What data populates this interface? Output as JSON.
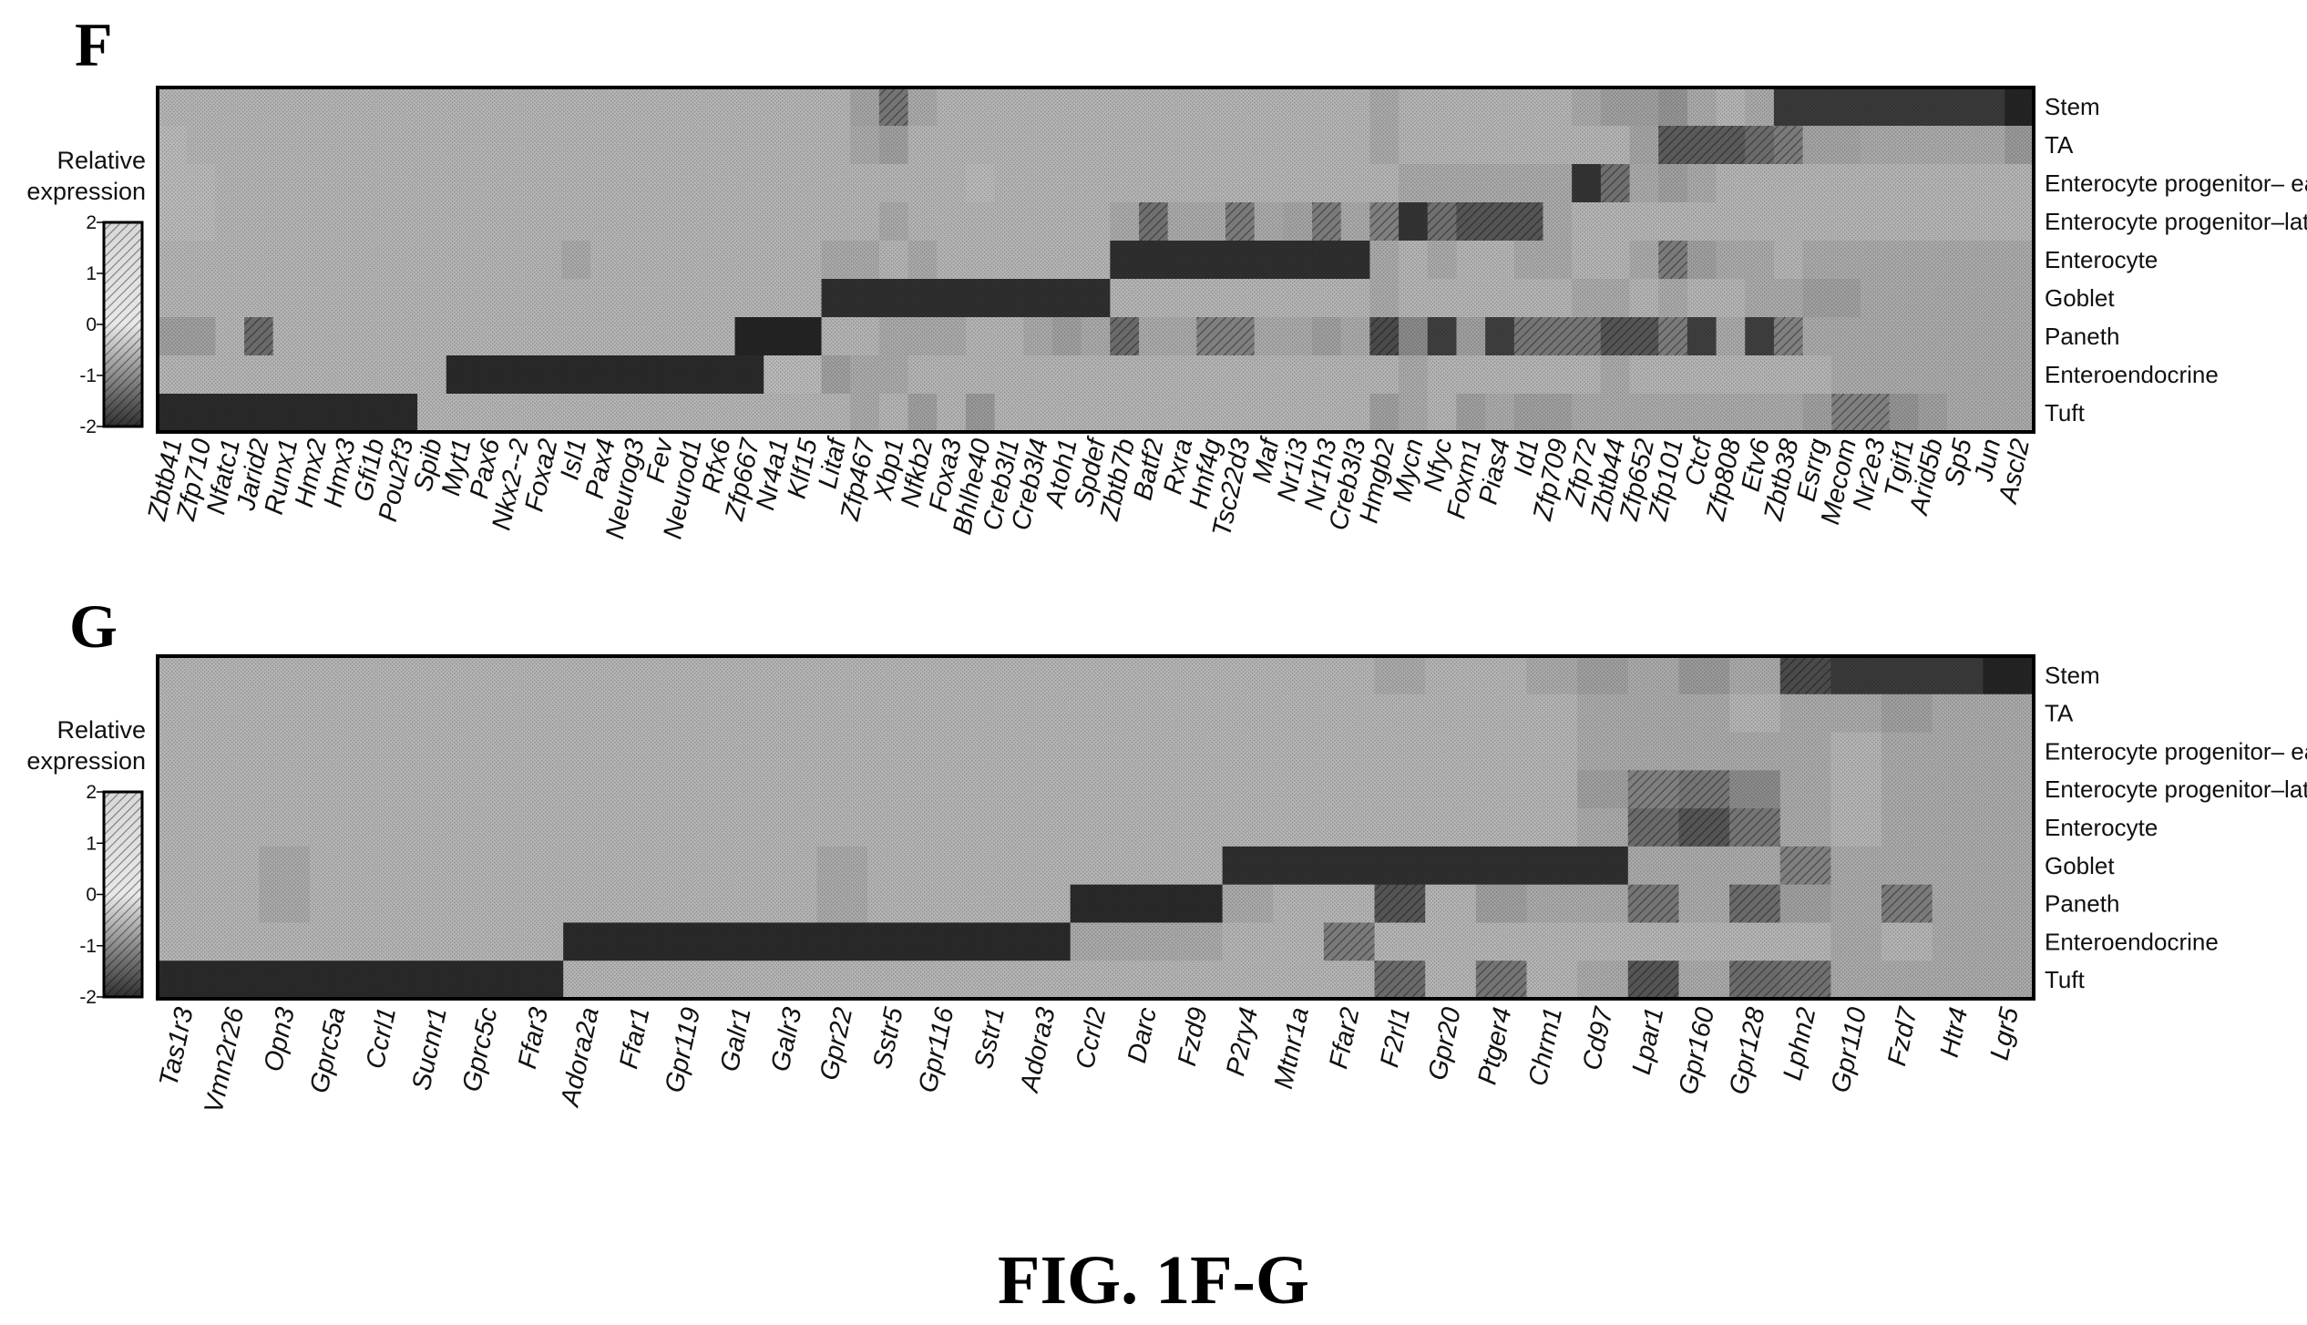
{
  "caption": "FIG. 1F-G",
  "colors": {
    "high": "#1f1f1f",
    "low": "#f4f4f4",
    "frame": "#000000"
  },
  "chart_data": [
    {
      "type": "heatmap",
      "panel": "F",
      "legend": {
        "title": [
          "Relative",
          "expression"
        ],
        "ticks": [
          "2",
          "1",
          "0",
          "-1",
          "-2"
        ],
        "range": [
          -2,
          2
        ]
      },
      "rows": [
        "Stem",
        "TA",
        "Enterocyte progenitor– early",
        "Enterocyte progenitor–late",
        "Enterocyte",
        "Goblet",
        "Paneth",
        "Enteroendocrine",
        "Tuft"
      ],
      "columns": [
        "Zbtb41",
        "Zfp710",
        "Nfatc1",
        "Jarid2",
        "Runx1",
        "Hmx2",
        "Hmx3",
        "Gfi1b",
        "Pou2f3",
        "Spib",
        "Myt1",
        "Pax6",
        "Nkx2--2",
        "Foxa2",
        "Isl1",
        "Pax4",
        "Neurog3",
        "Fev",
        "Neurod1",
        "Rfx6",
        "Zfp667",
        "Nr4a1",
        "Klf15",
        "Litaf",
        "Zfp467",
        "Xbp1",
        "Nfkb2",
        "Foxa3",
        "Bhlhe40",
        "Creb3l1",
        "Creb3l4",
        "Atoh1",
        "Spdef",
        "Zbtb7b",
        "Batf2",
        "Rxra",
        "Hnf4g",
        "Tsc22d3",
        "Maf",
        "Nr1i3",
        "Nr1h3",
        "Creb3l3",
        "Hmgb2",
        "Mycn",
        "Nfyc",
        "Foxm1",
        "Pias4",
        "Id1",
        "Zfp709",
        "Zfp72",
        "Zbtb44",
        "Zfp652",
        "Zfp101",
        "Ctcf",
        "Zfp808",
        "Etv6",
        "Zbtb38",
        "Esrrg",
        "Mecom",
        "Nr2e3",
        "Tgif1",
        "Arid5b",
        "Sp5",
        "Jun",
        "Ascl2"
      ],
      "values": [
        [
          -0.8,
          -0.8,
          -0.8,
          -0.8,
          -0.8,
          -0.8,
          -0.8,
          -0.8,
          -0.8,
          -0.8,
          -0.8,
          -0.8,
          -0.8,
          -0.8,
          -0.8,
          -0.8,
          -0.8,
          -0.8,
          -0.8,
          -0.8,
          -0.8,
          -0.8,
          -0.8,
          -0.8,
          -0.5,
          0.4,
          -0.6,
          -0.8,
          -0.8,
          -0.8,
          -0.8,
          -0.8,
          -0.8,
          -0.8,
          -0.8,
          -0.8,
          -0.8,
          -0.8,
          -0.8,
          -0.8,
          -0.8,
          -0.8,
          -0.6,
          -0.8,
          -0.8,
          -0.8,
          -0.8,
          -0.8,
          -0.8,
          -0.6,
          -0.4,
          -0.4,
          -0.2,
          -0.6,
          -0.8,
          -0.6,
          1.5,
          1.5,
          1.5,
          1.5,
          1.5,
          1.5,
          1.5,
          1.5,
          1.9
        ],
        [
          -0.9,
          -0.8,
          -0.8,
          -0.8,
          -0.8,
          -0.8,
          -0.8,
          -0.8,
          -0.8,
          -0.8,
          -0.8,
          -0.8,
          -0.8,
          -0.8,
          -0.8,
          -0.8,
          -0.8,
          -0.8,
          -0.8,
          -0.8,
          -0.8,
          -0.8,
          -0.8,
          -0.8,
          -0.6,
          -0.4,
          -0.8,
          -0.8,
          -0.8,
          -0.8,
          -0.8,
          -0.8,
          -0.8,
          -0.8,
          -0.8,
          -0.8,
          -0.8,
          -0.8,
          -0.8,
          -0.8,
          -0.8,
          -0.8,
          -0.6,
          -0.8,
          -0.8,
          -0.8,
          -0.8,
          -0.8,
          -0.8,
          -0.8,
          -0.8,
          -0.5,
          0.9,
          0.9,
          0.9,
          0.6,
          0.3,
          -0.5,
          -0.5,
          -0.6,
          -0.6,
          -0.6,
          -0.6,
          -0.6,
          -0.3
        ],
        [
          -0.9,
          -0.9,
          -0.8,
          -0.8,
          -0.8,
          -0.8,
          -0.8,
          -0.8,
          -0.8,
          -0.8,
          -0.8,
          -0.8,
          -0.8,
          -0.8,
          -0.8,
          -0.8,
          -0.8,
          -0.8,
          -0.8,
          -0.8,
          -0.8,
          -0.8,
          -0.8,
          -0.8,
          -0.8,
          -0.8,
          -0.8,
          -0.8,
          -0.9,
          -0.8,
          -0.8,
          -0.8,
          -0.8,
          -0.8,
          -0.8,
          -0.8,
          -0.8,
          -0.8,
          -0.8,
          -0.8,
          -0.8,
          -0.8,
          -0.8,
          -0.6,
          -0.6,
          -0.6,
          -0.6,
          -0.6,
          -0.6,
          1.6,
          0.5,
          -0.6,
          -0.4,
          -0.6,
          -0.8,
          -0.8,
          -0.8,
          -0.8,
          -0.8,
          -0.8,
          -0.8,
          -0.8,
          -0.8,
          -0.8,
          -0.8
        ],
        [
          -0.9,
          -0.9,
          -0.8,
          -0.8,
          -0.8,
          -0.8,
          -0.8,
          -0.8,
          -0.8,
          -0.8,
          -0.8,
          -0.8,
          -0.8,
          -0.8,
          -0.8,
          -0.8,
          -0.8,
          -0.8,
          -0.8,
          -0.8,
          -0.8,
          -0.8,
          -0.8,
          -0.8,
          -0.8,
          -0.6,
          -0.8,
          -0.8,
          -0.8,
          -0.8,
          -0.8,
          -0.8,
          -0.8,
          -0.6,
          0.5,
          -0.6,
          -0.6,
          0.3,
          -0.6,
          -0.5,
          0.3,
          -0.6,
          0.2,
          1.6,
          0.5,
          1.0,
          1.0,
          1.0,
          -0.6,
          -0.8,
          -0.8,
          -0.8,
          -0.8,
          -0.8,
          -0.8,
          -0.8,
          -0.8,
          -0.8,
          -0.8,
          -0.8,
          -0.8,
          -0.8,
          -0.8,
          -0.8,
          -0.8
        ],
        [
          -0.8,
          -0.8,
          -0.8,
          -0.8,
          -0.8,
          -0.8,
          -0.8,
          -0.8,
          -0.8,
          -0.8,
          -0.8,
          -0.8,
          -0.8,
          -0.8,
          -0.6,
          -0.8,
          -0.8,
          -0.8,
          -0.8,
          -0.8,
          -0.8,
          -0.8,
          -0.8,
          -0.6,
          -0.6,
          -0.8,
          -0.6,
          -0.8,
          -0.8,
          -0.8,
          -0.8,
          -0.8,
          -0.8,
          1.7,
          1.7,
          1.7,
          1.7,
          1.7,
          1.7,
          1.7,
          1.7,
          1.7,
          -0.6,
          -0.8,
          -0.6,
          -0.8,
          -0.8,
          -0.6,
          -0.6,
          -0.8,
          -0.8,
          -0.6,
          0.3,
          -0.4,
          -0.6,
          -0.6,
          -0.8,
          -0.6,
          -0.6,
          -0.6,
          -0.6,
          -0.6,
          -0.6,
          -0.6,
          -0.6
        ],
        [
          -0.8,
          -0.8,
          -0.8,
          -0.8,
          -0.8,
          -0.8,
          -0.8,
          -0.8,
          -0.8,
          -0.8,
          -0.8,
          -0.8,
          -0.8,
          -0.8,
          -0.8,
          -0.8,
          -0.8,
          -0.8,
          -0.8,
          -0.8,
          -0.8,
          -0.8,
          -0.8,
          1.7,
          1.7,
          1.7,
          1.7,
          1.7,
          1.7,
          1.7,
          1.7,
          1.7,
          1.7,
          -0.8,
          -0.8,
          -0.8,
          -0.8,
          -0.8,
          -0.8,
          -0.8,
          -0.8,
          -0.8,
          -0.6,
          -0.8,
          -0.8,
          -0.8,
          -0.8,
          -0.8,
          -0.8,
          -0.6,
          -0.6,
          -0.8,
          -0.6,
          -0.8,
          -0.8,
          -0.6,
          -0.6,
          -0.4,
          -0.4,
          -0.6,
          -0.6,
          -0.6,
          -0.6,
          -0.6,
          -0.6
        ],
        [
          -0.4,
          -0.4,
          -0.8,
          0.6,
          -0.8,
          -0.8,
          -0.8,
          -0.8,
          -0.8,
          -0.8,
          -0.8,
          -0.8,
          -0.8,
          -0.8,
          -0.8,
          -0.8,
          -0.8,
          -0.8,
          -0.8,
          -0.8,
          1.9,
          1.9,
          1.9,
          -0.8,
          -0.8,
          -0.6,
          -0.6,
          -0.6,
          -0.8,
          -0.8,
          -0.6,
          -0.4,
          -0.6,
          0.6,
          -0.6,
          -0.6,
          0.2,
          0.2,
          -0.6,
          -0.6,
          -0.4,
          -0.6,
          1.2,
          0.0,
          1.4,
          -0.4,
          1.4,
          0.4,
          0.4,
          0.4,
          1.0,
          1.0,
          0.3,
          1.4,
          -0.6,
          1.4,
          0.2,
          -0.6,
          -0.6,
          -0.6,
          -0.6,
          -0.6,
          -0.6,
          -0.6,
          -0.6
        ],
        [
          -0.8,
          -0.8,
          -0.8,
          -0.8,
          -0.8,
          -0.8,
          -0.8,
          -0.8,
          -0.8,
          -0.8,
          1.8,
          1.8,
          1.8,
          1.8,
          1.8,
          1.8,
          1.8,
          1.8,
          1.8,
          1.8,
          1.8,
          -0.9,
          -0.9,
          -0.4,
          -0.6,
          -0.6,
          -0.8,
          -0.8,
          -0.8,
          -0.8,
          -0.8,
          -0.8,
          -0.8,
          -0.8,
          -0.8,
          -0.8,
          -0.8,
          -0.8,
          -0.8,
          -0.8,
          -0.8,
          -0.8,
          -0.8,
          -0.6,
          -0.8,
          -0.8,
          -0.8,
          -0.8,
          -0.8,
          -0.8,
          -0.6,
          -0.8,
          -0.8,
          -0.8,
          -0.8,
          -0.8,
          -0.8,
          -0.8,
          -0.6,
          -0.6,
          -0.6,
          -0.6,
          -0.6,
          -0.6,
          -0.6
        ],
        [
          1.8,
          1.8,
          1.8,
          1.8,
          1.8,
          1.8,
          1.8,
          1.8,
          1.8,
          -0.8,
          -0.8,
          -0.8,
          -0.8,
          -0.8,
          -0.8,
          -0.8,
          -0.8,
          -0.8,
          -0.8,
          -0.8,
          -0.8,
          -0.8,
          -0.8,
          -0.8,
          -0.6,
          -0.8,
          -0.4,
          -0.8,
          -0.3,
          -0.8,
          -0.8,
          -0.8,
          -0.8,
          -0.8,
          -0.8,
          -0.8,
          -0.8,
          -0.8,
          -0.8,
          -0.8,
          -0.8,
          -0.8,
          -0.4,
          -0.6,
          -0.8,
          -0.4,
          -0.6,
          -0.4,
          -0.4,
          -0.6,
          -0.6,
          -0.6,
          -0.6,
          -0.6,
          -0.6,
          -0.6,
          -0.6,
          -0.4,
          0.2,
          0.2,
          -0.2,
          -0.4,
          -0.6,
          -0.6,
          -0.6
        ]
      ]
    },
    {
      "type": "heatmap",
      "panel": "G",
      "legend": {
        "title": [
          "Relative",
          "expression"
        ],
        "ticks": [
          "2",
          "1",
          "0",
          "-1",
          "-2"
        ],
        "range": [
          -2,
          2
        ]
      },
      "rows": [
        "Stem",
        "TA",
        "Enterocyte progenitor– early",
        "Enterocyte progenitor–late",
        "Enterocyte",
        "Goblet",
        "Paneth",
        "Enteroendocrine",
        "Tuft"
      ],
      "columns": [
        "Tas1r3",
        "Vmn2r26",
        "Opn3",
        "Gprc5a",
        "Ccrl1",
        "Sucnr1",
        "Gprc5c",
        "Ffar3",
        "Adora2a",
        "Ffar1",
        "Gpr119",
        "Galr1",
        "Galr3",
        "Gpr22",
        "Sstr5",
        "Gpr116",
        "Sstr1",
        "Adora3",
        "Ccrl2",
        "Darc",
        "Fzd9",
        "P2ry4",
        "Mtnr1a",
        "Ffar2",
        "F2rl1",
        "Gpr20",
        "Ptger4",
        "Chrm1",
        "Cd97",
        "Lpar1",
        "Gpr160",
        "Gpr128",
        "Lphn2",
        "Gpr110",
        "Fzd7",
        "Htr4",
        "Lgr5"
      ],
      "values": [
        [
          -0.8,
          -0.8,
          -0.8,
          -0.8,
          -0.8,
          -0.8,
          -0.8,
          -0.8,
          -0.8,
          -0.8,
          -0.8,
          -0.8,
          -0.8,
          -0.8,
          -0.8,
          -0.8,
          -0.8,
          -0.8,
          -0.8,
          -0.8,
          -0.8,
          -0.8,
          -0.8,
          -0.8,
          -0.6,
          -0.8,
          -0.8,
          -0.6,
          -0.4,
          -0.6,
          -0.3,
          -0.6,
          1.2,
          1.5,
          1.5,
          1.5,
          1.9
        ],
        [
          -0.8,
          -0.8,
          -0.8,
          -0.8,
          -0.8,
          -0.8,
          -0.8,
          -0.8,
          -0.8,
          -0.8,
          -0.8,
          -0.8,
          -0.8,
          -0.8,
          -0.8,
          -0.8,
          -0.8,
          -0.8,
          -0.8,
          -0.8,
          -0.8,
          -0.8,
          -0.8,
          -0.8,
          -0.8,
          -0.8,
          -0.8,
          -0.8,
          -0.6,
          -0.6,
          -0.6,
          -0.8,
          -0.6,
          -0.6,
          -0.4,
          -0.6,
          -0.6
        ],
        [
          -0.8,
          -0.8,
          -0.8,
          -0.8,
          -0.8,
          -0.8,
          -0.8,
          -0.8,
          -0.8,
          -0.8,
          -0.8,
          -0.8,
          -0.8,
          -0.8,
          -0.8,
          -0.8,
          -0.8,
          -0.8,
          -0.8,
          -0.8,
          -0.8,
          -0.8,
          -0.8,
          -0.8,
          -0.8,
          -0.8,
          -0.8,
          -0.8,
          -0.6,
          -0.6,
          -0.6,
          -0.6,
          -0.6,
          -0.8,
          -0.6,
          -0.6,
          -0.6
        ],
        [
          -0.8,
          -0.8,
          -0.8,
          -0.8,
          -0.8,
          -0.8,
          -0.8,
          -0.8,
          -0.8,
          -0.8,
          -0.8,
          -0.8,
          -0.8,
          -0.8,
          -0.8,
          -0.8,
          -0.8,
          -0.8,
          -0.8,
          -0.8,
          -0.8,
          -0.8,
          -0.8,
          -0.8,
          -0.8,
          -0.8,
          -0.8,
          -0.8,
          -0.4,
          0.2,
          0.4,
          0.0,
          -0.6,
          -0.8,
          -0.6,
          -0.6,
          -0.6
        ],
        [
          -0.8,
          -0.8,
          -0.8,
          -0.8,
          -0.8,
          -0.8,
          -0.8,
          -0.8,
          -0.8,
          -0.8,
          -0.8,
          -0.8,
          -0.8,
          -0.8,
          -0.8,
          -0.8,
          -0.8,
          -0.8,
          -0.8,
          -0.8,
          -0.8,
          -0.8,
          -0.8,
          -0.8,
          -0.8,
          -0.8,
          -0.8,
          -0.8,
          -0.6,
          0.6,
          1.0,
          0.4,
          -0.6,
          -0.8,
          -0.6,
          -0.6,
          -0.6
        ],
        [
          -0.8,
          -0.8,
          -0.6,
          -0.8,
          -0.8,
          -0.8,
          -0.8,
          -0.8,
          -0.8,
          -0.8,
          -0.8,
          -0.8,
          -0.8,
          -0.6,
          -0.8,
          -0.8,
          -0.8,
          -0.8,
          -0.8,
          -0.8,
          -0.8,
          1.7,
          1.7,
          1.7,
          1.7,
          1.7,
          1.7,
          1.7,
          1.7,
          -0.6,
          -0.6,
          -0.6,
          0.2,
          -0.6,
          -0.6,
          -0.6,
          -0.6
        ],
        [
          -0.8,
          -0.8,
          -0.6,
          -0.8,
          -0.8,
          -0.8,
          -0.8,
          -0.8,
          -0.8,
          -0.8,
          -0.8,
          -0.8,
          -0.8,
          -0.6,
          -0.8,
          -0.8,
          -0.8,
          -0.8,
          1.8,
          1.8,
          1.8,
          -0.6,
          -0.8,
          -0.8,
          1.0,
          -0.8,
          -0.4,
          -0.6,
          -0.6,
          0.4,
          -0.6,
          0.6,
          -0.4,
          -0.6,
          0.3,
          -0.6,
          -0.6
        ],
        [
          -0.8,
          -0.8,
          -0.8,
          -0.8,
          -0.8,
          -0.8,
          -0.8,
          -0.8,
          1.8,
          1.8,
          1.8,
          1.8,
          1.8,
          1.8,
          1.8,
          1.8,
          1.8,
          1.8,
          -0.6,
          -0.6,
          -0.6,
          -0.8,
          -0.8,
          0.3,
          -0.8,
          -0.8,
          -0.8,
          -0.8,
          -0.8,
          -0.8,
          -0.8,
          -0.8,
          -0.8,
          -0.6,
          -0.8,
          -0.6,
          -0.6
        ],
        [
          1.8,
          1.8,
          1.8,
          1.8,
          1.8,
          1.8,
          1.8,
          1.8,
          -0.8,
          -0.8,
          -0.8,
          -0.8,
          -0.8,
          -0.8,
          -0.8,
          -0.8,
          -0.8,
          -0.8,
          -0.8,
          -0.8,
          -0.8,
          -0.8,
          -0.8,
          -0.8,
          0.6,
          -0.8,
          0.4,
          -0.8,
          -0.6,
          1.0,
          -0.6,
          0.6,
          0.5,
          -0.6,
          -0.6,
          -0.6,
          -0.6
        ]
      ]
    }
  ]
}
